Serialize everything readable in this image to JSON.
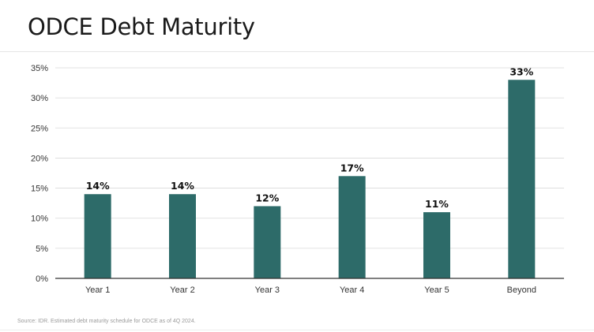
{
  "page": {
    "title": "ODCE Debt Maturity",
    "source": "Source: IDR. Estimated debt maturity schedule for ODCE as of 4Q 2024."
  },
  "colors": {
    "bar": "#2d6b69",
    "grid": "#d9d9d9",
    "axis": "#333333",
    "tick_text": "#333333",
    "label_text": "#111111"
  },
  "chart_data": {
    "type": "bar",
    "title": "ODCE Debt Maturity",
    "xlabel": "",
    "ylabel": "",
    "categories": [
      "Year 1",
      "Year 2",
      "Year 3",
      "Year 4",
      "Year 5",
      "Beyond"
    ],
    "values": [
      14,
      14,
      12,
      17,
      11,
      33
    ],
    "value_labels": [
      "14%",
      "14%",
      "12%",
      "17%",
      "11%",
      "33%"
    ],
    "ylim": [
      0,
      35
    ],
    "yticks": [
      0,
      5,
      10,
      15,
      20,
      25,
      30,
      35
    ],
    "ytick_labels": [
      "0%",
      "5%",
      "10%",
      "15%",
      "20%",
      "25%",
      "30%",
      "35%"
    ],
    "grid": true,
    "legend": "none"
  }
}
